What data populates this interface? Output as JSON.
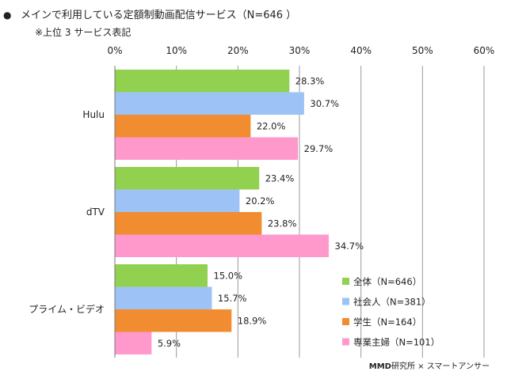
{
  "header": {
    "bullet": "●",
    "title": "メインで利用している定額制動画配信サービス（N=646 ）",
    "subtitle": "※上位 3 サービス表記"
  },
  "credit": {
    "brand": "MMD",
    "text": "研究所 × スマートアンサー"
  },
  "colors": {
    "all": "#92d050",
    "worker": "#9dc3f6",
    "student": "#f28c30",
    "housewife": "#ff99cc",
    "grid": "#999999"
  },
  "chart_data": {
    "type": "bar",
    "orientation": "horizontal",
    "title": "メインで利用している定額制動画配信サービス（N=646 ）",
    "subtitle": "※上位 3 サービス表記",
    "categories": [
      "Hulu",
      "dTV",
      "プライム・ビデオ"
    ],
    "xlim": [
      0,
      60
    ],
    "ticks": [
      "0%",
      "10%",
      "20%",
      "30%",
      "40%",
      "50%",
      "60%"
    ],
    "grid": true,
    "legend_position": "bottom-right",
    "series": [
      {
        "name": "全体（N=646）",
        "color": "#92d050",
        "values": [
          28.3,
          23.4,
          15.0
        ],
        "labels": [
          "28.3%",
          "23.4%",
          "15.0%"
        ]
      },
      {
        "name": "社会人（N=381）",
        "color": "#9dc3f6",
        "values": [
          30.7,
          20.2,
          15.7
        ],
        "labels": [
          "30.7%",
          "20.2%",
          "15.7%"
        ]
      },
      {
        "name": "学生（N=164）",
        "color": "#f28c30",
        "values": [
          22.0,
          23.8,
          18.9
        ],
        "labels": [
          "22.0%",
          "23.8%",
          "18.9%"
        ]
      },
      {
        "name": "専業主婦（N=101）",
        "color": "#ff99cc",
        "values": [
          29.7,
          34.7,
          5.9
        ],
        "labels": [
          "29.7%",
          "34.7%",
          "5.9%"
        ]
      }
    ]
  }
}
